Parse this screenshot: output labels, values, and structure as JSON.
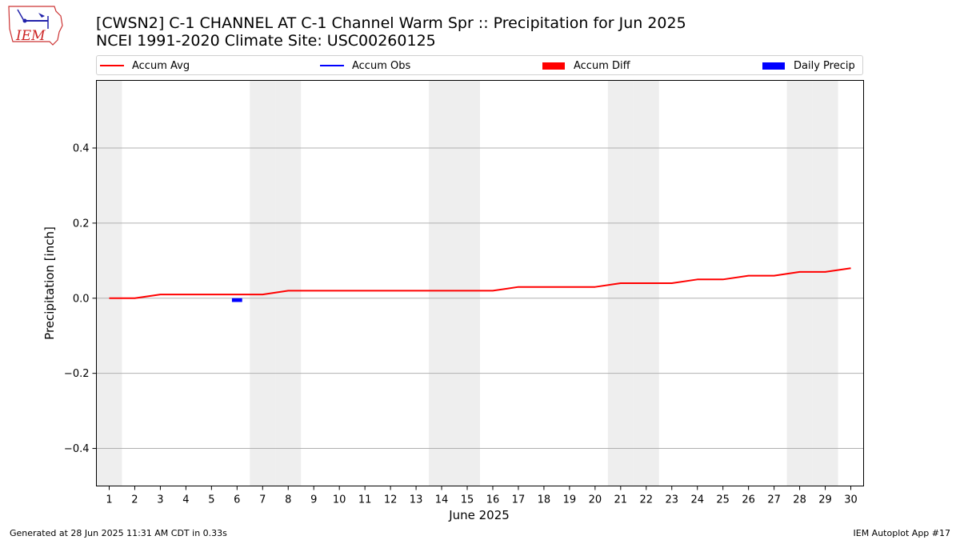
{
  "header": {
    "title_line1": "[CWSN2] C-1 CHANNEL  AT C-1 Channel Warm Spr :: Precipitation for Jun 2025",
    "title_line2": "NCEI 1991-2020 Climate Site: USC00260125",
    "logo_text": "IEM"
  },
  "legend": {
    "items": [
      {
        "label": "Accum Avg",
        "kind": "line",
        "color": "#ff0000"
      },
      {
        "label": "Accum Obs",
        "kind": "line",
        "color": "#0000ff"
      },
      {
        "label": "Accum Diff",
        "kind": "patch",
        "color": "#ff0000"
      },
      {
        "label": "Daily Precip",
        "kind": "patch",
        "color": "#0000ff"
      }
    ]
  },
  "footer": {
    "generated": "Generated at 28 Jun 2025 11:31 AM CDT in 0.33s",
    "app": "IEM Autoplot App #17"
  },
  "colors": {
    "accum_avg": "#ff0000",
    "daily_precip": "#0000ff",
    "weekend_shade": "#eeeeee",
    "grid": "#b0b0b0"
  },
  "chart_data": {
    "type": "line",
    "title": "[CWSN2] C-1 CHANNEL  AT C-1 Channel Warm Spr :: Precipitation for Jun 2025",
    "subtitle": "NCEI 1991-2020 Climate Site: USC00260125",
    "xlabel": "June 2025",
    "ylabel": "Precipitation [inch]",
    "x": [
      1,
      2,
      3,
      4,
      5,
      6,
      7,
      8,
      9,
      10,
      11,
      12,
      13,
      14,
      15,
      16,
      17,
      18,
      19,
      20,
      21,
      22,
      23,
      24,
      25,
      26,
      27,
      28,
      29,
      30
    ],
    "xlim": [
      0.5,
      30.5
    ],
    "ylim": [
      -0.5,
      0.58
    ],
    "yticks": [
      -0.4,
      -0.2,
      0.0,
      0.2,
      0.4
    ],
    "ytick_labels": [
      "−0.4",
      "−0.2",
      "0.0",
      "0.2",
      "0.4"
    ],
    "grid": "horizontal",
    "legend_position": "top",
    "weekend_days": [
      1,
      7,
      8,
      14,
      15,
      21,
      22,
      28,
      29
    ],
    "series": [
      {
        "name": "Accum Avg",
        "kind": "line",
        "values": [
          0.0,
          0.0,
          0.01,
          0.01,
          0.01,
          0.01,
          0.01,
          0.02,
          0.02,
          0.02,
          0.02,
          0.02,
          0.02,
          0.02,
          0.02,
          0.02,
          0.03,
          0.03,
          0.03,
          0.03,
          0.04,
          0.04,
          0.04,
          0.05,
          0.05,
          0.06,
          0.06,
          0.07,
          0.07,
          0.08
        ]
      },
      {
        "name": "Daily Precip",
        "kind": "bar",
        "values": [
          {
            "x": 6,
            "y": -0.01
          }
        ]
      }
    ]
  }
}
